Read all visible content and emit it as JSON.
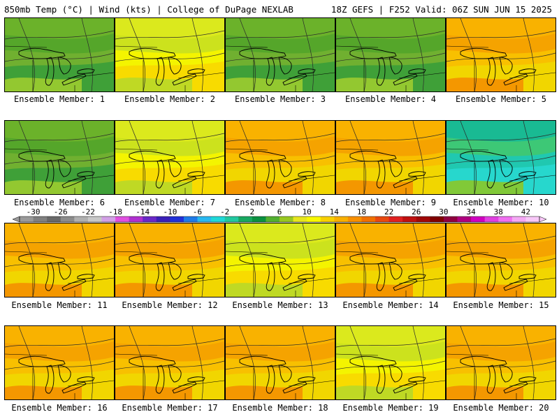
{
  "header": {
    "left": "850mb Temp (°C) | Wind (kts) | College of DuPage NEXLAB",
    "right": "18Z GEFS | F252 Valid: 06Z SUN JUN 15 2025"
  },
  "panels": [
    {
      "label": "Ensemble Member: 1",
      "scheme": "green"
    },
    {
      "label": "Ensemble Member: 2",
      "scheme": "yellow"
    },
    {
      "label": "Ensemble Member: 3",
      "scheme": "green"
    },
    {
      "label": "Ensemble Member: 4",
      "scheme": "green"
    },
    {
      "label": "Ensemble Member: 5",
      "scheme": "orange"
    },
    {
      "label": "Ensemble Member: 6",
      "scheme": "green"
    },
    {
      "label": "Ensemble Member: 7",
      "scheme": "yellow"
    },
    {
      "label": "Ensemble Member: 8",
      "scheme": "orange"
    },
    {
      "label": "Ensemble Member: 9",
      "scheme": "orange"
    },
    {
      "label": "Ensemble Member: 10",
      "scheme": "cyan"
    },
    {
      "label": "Ensemble Member: 11",
      "scheme": "orange"
    },
    {
      "label": "Ensemble Member: 12",
      "scheme": "orange"
    },
    {
      "label": "Ensemble Member: 13",
      "scheme": "yellow"
    },
    {
      "label": "Ensemble Member: 14",
      "scheme": "orange"
    },
    {
      "label": "Ensemble Member: 15",
      "scheme": "orange"
    },
    {
      "label": "Ensemble Member: 16",
      "scheme": "orange"
    },
    {
      "label": "Ensemble Member: 17",
      "scheme": "orange"
    },
    {
      "label": "Ensemble Member: 18",
      "scheme": "orange"
    },
    {
      "label": "Ensemble Member: 19",
      "scheme": "yellow"
    },
    {
      "label": "Ensemble Member: 20",
      "scheme": "orange"
    }
  ],
  "colorbar": {
    "labels": [
      "-30",
      "-26",
      "-22",
      "-18",
      "-14",
      "-10",
      "-6",
      "-2",
      "2",
      "6",
      "10",
      "14",
      "18",
      "22",
      "26",
      "30",
      "34",
      "38",
      "42"
    ],
    "colors": [
      "#9a9a9a",
      "#808080",
      "#686868",
      "#8c8c8c",
      "#b0b0b0",
      "#c8c8c8",
      "#d2a0e6",
      "#e04fe0",
      "#b030d0",
      "#6a28c8",
      "#3a20b8",
      "#2030d8",
      "#1e7ae8",
      "#28b8f0",
      "#20d8d8",
      "#22c8a0",
      "#18a860",
      "#0a9040",
      "#52b030",
      "#98c820",
      "#e6e61e",
      "#f8f800",
      "#f8d000",
      "#f8b000",
      "#f89000",
      "#f07000",
      "#e84810",
      "#e02020",
      "#c01010",
      "#a00808",
      "#800000",
      "#900040",
      "#b00080",
      "#d000c0",
      "#e040e0",
      "#f070f0",
      "#f4a8f4",
      "#f8c8f8"
    ]
  },
  "palettes": {
    "green": [
      "#70b030",
      "#6ab22a",
      "#52a52a",
      "#3a9e3a",
      "#9ccc30"
    ],
    "yellow": [
      "#f4f400",
      "#d8e820",
      "#c8e020",
      "#f8d800",
      "#b8d828"
    ],
    "orange": [
      "#f8c000",
      "#f8b000",
      "#f4a000",
      "#f0d800",
      "#f49000"
    ],
    "cyan": [
      "#20c8b0",
      "#18b890",
      "#40c870",
      "#28d8d0",
      "#8cc828"
    ]
  }
}
